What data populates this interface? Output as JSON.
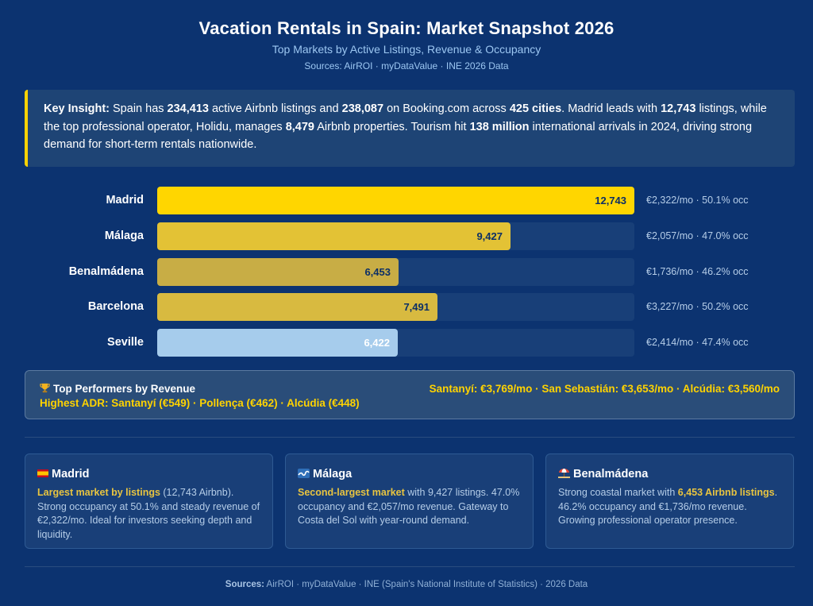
{
  "header": {
    "title": "Vacation Rentals in Spain: Market Snapshot 2026",
    "subtitle": "Top Markets by Active Listings, Revenue & Occupancy",
    "sources": "Sources: AirROI · myDataValue · INE 2026 Data"
  },
  "insight": {
    "label": "Key Insight:",
    "t1": " Spain has ",
    "b1": "234,413",
    "t2": " active Airbnb listings and ",
    "b2": "238,087",
    "t3": " on Booking.com across ",
    "b3": "425 cities",
    "t4": ". Madrid leads with ",
    "b4": "12,743",
    "t5": " listings, while the top professional operator, Holidu, manages ",
    "b5": "8,479",
    "t6": " Airbnb properties. Tourism hit ",
    "b6": "138 million",
    "t7": " international arrivals in 2024, driving strong demand for short-term rentals nationwide."
  },
  "chart_data": {
    "type": "bar",
    "orientation": "horizontal",
    "categories": [
      "Madrid",
      "Málaga",
      "Benalmádena",
      "Barcelona",
      "Seville"
    ],
    "values": [
      12743,
      9427,
      6453,
      7491,
      6422
    ],
    "value_labels": [
      "12,743",
      "9,427",
      "6,453",
      "7,491",
      "6,422"
    ],
    "annotations": [
      "€2,322/mo · 50.1% occ",
      "€2,057/mo · 47.0% occ",
      "€1,736/mo · 46.2% occ",
      "€3,227/mo · 50.2% occ",
      "€2,414/mo · 47.4% occ"
    ],
    "colors": [
      "#ffd600",
      "#e3c235",
      "#c8ad45",
      "#d8ba40",
      "#a6ccec"
    ],
    "track_color": "#183f78",
    "xlim": [
      0,
      12743
    ]
  },
  "performers": {
    "icon": "trophy-icon",
    "title": "Top Performers by Revenue",
    "revenue": "Santanyí: €3,769/mo · San Sebastián: €3,653/mo · Alcúdia: €3,560/mo",
    "adr": "Highest ADR: Santanyí (€549) · Pollença (€462) · Alcúdia (€448)"
  },
  "cards": [
    {
      "icon": "spain-flag-icon",
      "title": "Madrid",
      "highlight": "Largest market by listings",
      "body": " (12,743 Airbnb). Strong occupancy at 50.1% and steady revenue of €2,322/mo. Ideal for investors seeking depth and liquidity."
    },
    {
      "icon": "wave-icon",
      "title": "Málaga",
      "highlight": "Second-largest market",
      "body": " with 9,427 listings. 47.0% occupancy and €2,057/mo revenue. Gateway to Costa del Sol with year-round demand."
    },
    {
      "icon": "beach-umbrella-icon",
      "title": "Benalmádena",
      "pre": "Strong coastal market with ",
      "highlight": "6,453 Airbnb listings",
      "body": ". 46.2% occupancy and €1,736/mo revenue. Growing professional operator presence."
    }
  ],
  "footer": {
    "label": "Sources:",
    "text": " AirROI · myDataValue · INE (Spain's National Institute of Statistics) · 2026 Data"
  }
}
